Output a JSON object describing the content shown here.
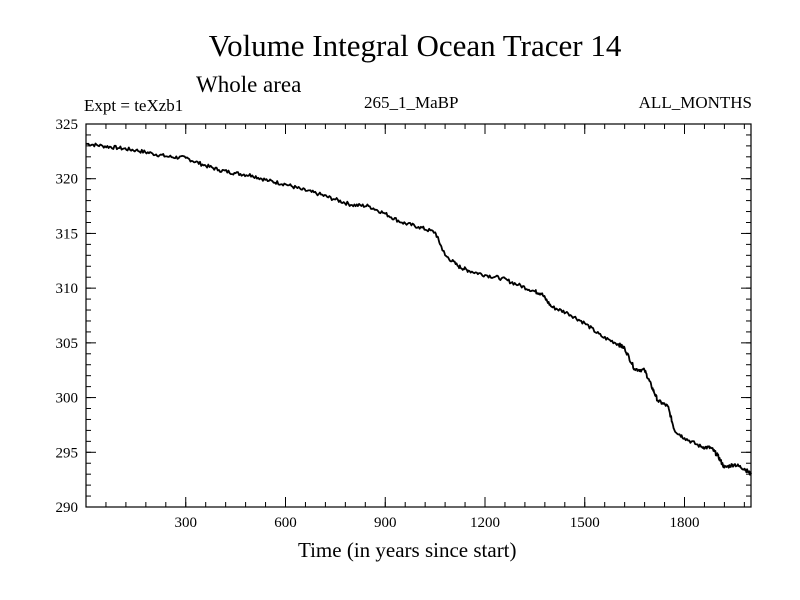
{
  "chart_data": {
    "type": "line",
    "title": "Volume Integral Ocean Tracer 14",
    "subtitle": "Whole area",
    "expt_label": "Expt = teXzb1",
    "center_label": "265_1_MaBP",
    "right_label": "ALL_MONTHS",
    "xlabel": "Time (in years since start)",
    "ylabel": "",
    "xlim": [
      0,
      2000
    ],
    "ylim": [
      290,
      325
    ],
    "x_ticks": [
      300,
      600,
      900,
      1200,
      1500,
      1800
    ],
    "y_ticks": [
      290,
      295,
      300,
      305,
      310,
      315,
      320,
      325
    ],
    "grid": false,
    "series": [
      {
        "name": "Volume Integral Ocean Tracer 14",
        "color": "#000000",
        "x": [
          0,
          50,
          100,
          150,
          200,
          250,
          300,
          350,
          400,
          450,
          500,
          550,
          600,
          650,
          700,
          750,
          800,
          850,
          900,
          950,
          1000,
          1050,
          1080,
          1120,
          1150,
          1200,
          1250,
          1300,
          1350,
          1370,
          1400,
          1450,
          1500,
          1550,
          1600,
          1620,
          1650,
          1680,
          1700,
          1720,
          1750,
          1770,
          1800,
          1850,
          1880,
          1900,
          1920,
          1950,
          1980,
          2000
        ],
        "y": [
          323.2,
          323.0,
          322.8,
          322.6,
          322.3,
          322.0,
          321.9,
          321.3,
          320.8,
          320.5,
          320.3,
          319.8,
          319.5,
          319.0,
          318.6,
          318.1,
          317.6,
          317.5,
          316.8,
          316.0,
          315.6,
          315.1,
          313.0,
          312.0,
          311.6,
          311.2,
          310.9,
          310.3,
          309.7,
          309.5,
          308.3,
          307.7,
          306.8,
          305.6,
          304.9,
          304.5,
          302.6,
          302.5,
          301.1,
          299.7,
          299.2,
          297.0,
          296.3,
          295.5,
          295.4,
          294.7,
          293.6,
          293.9,
          293.5,
          293.0
        ]
      }
    ]
  }
}
